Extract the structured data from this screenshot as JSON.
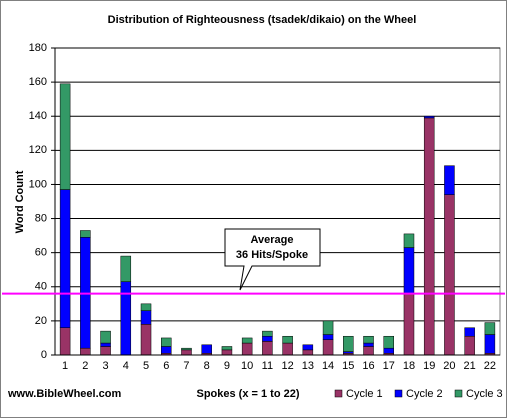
{
  "chart_data": {
    "type": "stacked_bar",
    "title": "Distribution of Righteousness (tsadek/dikaio) on the Wheel",
    "x_label": "Spokes (x = 1 to 22)",
    "y_label": "Word Count",
    "categories": [
      "1",
      "2",
      "3",
      "4",
      "5",
      "6",
      "7",
      "8",
      "9",
      "10",
      "11",
      "12",
      "13",
      "14",
      "15",
      "16",
      "17",
      "18",
      "19",
      "20",
      "21",
      "22"
    ],
    "series": [
      {
        "name": "Cycle 1",
        "color": "#993366",
        "values": [
          16,
          4,
          5,
          0,
          18,
          1,
          3,
          1,
          3,
          7,
          8,
          7,
          3,
          9,
          1,
          5,
          1,
          36,
          139,
          94,
          11,
          1
        ]
      },
      {
        "name": "Cycle 2",
        "color": "#0000ff",
        "values": [
          81,
          65,
          2,
          43,
          8,
          4,
          0,
          5,
          0,
          0,
          3,
          0,
          3,
          3,
          1,
          2,
          3,
          27,
          1,
          17,
          5,
          11
        ]
      },
      {
        "name": "Cycle 3",
        "color": "#339966",
        "values": [
          62,
          4,
          7,
          15,
          4,
          5,
          1,
          0,
          2,
          3,
          3,
          4,
          0,
          8,
          9,
          4,
          7,
          8,
          0,
          0,
          0,
          7
        ]
      }
    ],
    "ylim": [
      0,
      180
    ],
    "yticks": [
      0,
      20,
      40,
      60,
      80,
      100,
      120,
      140,
      160,
      180
    ],
    "grid": true,
    "reference_line": {
      "value": 36,
      "color": "#ff00ff"
    },
    "annotation": [
      "Average",
      "36 Hits/Spoke"
    ],
    "footer": "www.BibleWheel.com"
  }
}
